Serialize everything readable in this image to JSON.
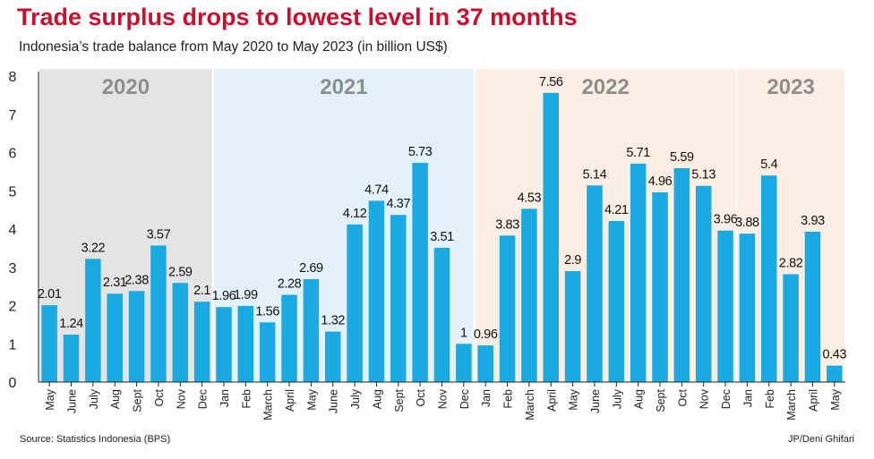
{
  "title": "Trade surplus drops to lowest level in 37 months",
  "subtitle": "Indonesia’s trade balance from May 2020 to May 2023 (in billion US$)",
  "source": "Source: Statistics Indonesia (BPS)",
  "credit": "JP/Deni Ghifari",
  "colors": {
    "bar": "#1ba9e1",
    "title": "#c8102e",
    "band_2020": "#e4e4e4",
    "band_2021": "#e2f1fa",
    "band_2022": "#fbeee2",
    "band_2023": "#fbeee2",
    "year_label": "#8e8e8e"
  },
  "chart_data": {
    "type": "bar",
    "title": "Trade surplus drops to lowest level in 37 months",
    "subtitle": "Indonesia’s trade balance from May 2020 to May 2023 (in billion US$)",
    "ylim": [
      0,
      8
    ],
    "yticks": [
      0,
      1,
      2,
      3,
      4,
      5,
      6,
      7,
      8
    ],
    "grid": false,
    "year_bands": [
      {
        "label": "2020",
        "start": 0,
        "end": 7
      },
      {
        "label": "2021",
        "start": 8,
        "end": 19
      },
      {
        "label": "2022",
        "start": 20,
        "end": 31
      },
      {
        "label": "2023",
        "start": 32,
        "end": 36
      }
    ],
    "categories": [
      "May",
      "June",
      "July",
      "Aug",
      "Sept",
      "Oct",
      "Nov",
      "Dec",
      "Jan",
      "Feb",
      "March",
      "April",
      "May",
      "June",
      "July",
      "Aug",
      "Sept",
      "Oct",
      "Nov",
      "Dec",
      "Jan",
      "Feb",
      "March",
      "April",
      "May",
      "June",
      "July",
      "Aug",
      "Sept",
      "Oct",
      "Nov",
      "Dec",
      "Jan",
      "Feb",
      "March",
      "April",
      "May"
    ],
    "values": [
      2.01,
      1.24,
      3.22,
      2.31,
      2.38,
      3.57,
      2.59,
      2.1,
      1.96,
      1.99,
      1.56,
      2.28,
      2.69,
      1.32,
      4.12,
      4.74,
      4.37,
      5.73,
      3.51,
      1,
      0.96,
      3.83,
      4.53,
      7.56,
      2.9,
      5.14,
      4.21,
      5.71,
      4.96,
      5.59,
      5.13,
      3.96,
      3.88,
      5.4,
      2.82,
      3.93,
      0.43
    ],
    "value_labels": [
      "2.01",
      "1.24",
      "3.22",
      "2.31",
      "2.38",
      "3.57",
      "2.59",
      "2.1",
      "1.96",
      "1.99",
      "1.56",
      "2.28",
      "2.69",
      "1.32",
      "4.12",
      "4.74",
      "4.37",
      "5.73",
      "3.51",
      "1",
      "0.96",
      "3.83",
      "4.53",
      "7.56",
      "2.9",
      "5.14",
      "4.21",
      "5.71",
      "4.96",
      "5.59",
      "5.13",
      "3.96",
      "3.88",
      "5.4",
      "2.82",
      "3.93",
      "0.43"
    ]
  }
}
